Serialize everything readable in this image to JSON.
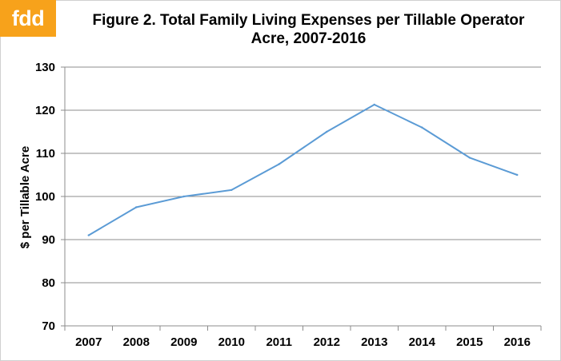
{
  "logo": {
    "text": "fdd",
    "color": "#f7a21b"
  },
  "chart_data": {
    "type": "line",
    "title_line1": "Figure 2.  Total Family Living Expenses per Tillable Operator",
    "title_line2": "Acre, 2007-2016",
    "xlabel": "",
    "ylabel": "$ per Tillable Acre",
    "categories": [
      "2007",
      "2008",
      "2009",
      "2010",
      "2011",
      "2012",
      "2013",
      "2014",
      "2015",
      "2016"
    ],
    "series": [
      {
        "color": "#5b9bd5",
        "values": [
          91,
          97.5,
          100,
          101.5,
          107.5,
          115,
          121.3,
          116,
          109,
          105
        ]
      }
    ],
    "ylim": [
      70,
      130
    ],
    "yticks": [
      70,
      80,
      90,
      100,
      110,
      120,
      130
    ],
    "grid": true,
    "legend": "none"
  }
}
